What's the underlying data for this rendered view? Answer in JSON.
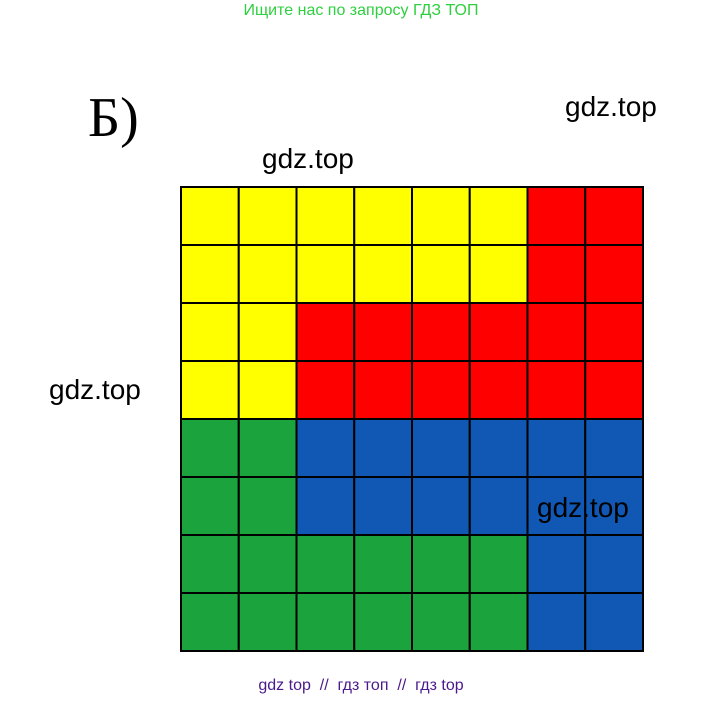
{
  "header": {
    "text": "Ищите нас по запросу ГДЗ ТОП"
  },
  "label": "Б)",
  "watermarks": [
    "gdz.top",
    "gdz.top",
    "gdz.top",
    "gdz.top"
  ],
  "grid": {
    "rows": [
      [
        "#ffff00",
        "#ffff00",
        "#ffff00",
        "#ffff00",
        "#ffff00",
        "#ffff00",
        "#ff0000",
        "#ff0000"
      ],
      [
        "#ffff00",
        "#ffff00",
        "#ffff00",
        "#ffff00",
        "#ffff00",
        "#ffff00",
        "#ff0000",
        "#ff0000"
      ],
      [
        "#ffff00",
        "#ffff00",
        "#ff0000",
        "#ff0000",
        "#ff0000",
        "#ff0000",
        "#ff0000",
        "#ff0000"
      ],
      [
        "#ffff00",
        "#ffff00",
        "#ff0000",
        "#ff0000",
        "#ff0000",
        "#ff0000",
        "#ff0000",
        "#ff0000"
      ],
      [
        "#1ba33d",
        "#1ba33d",
        "#1058b3",
        "#1058b3",
        "#1058b3",
        "#1058b3",
        "#1058b3",
        "#1058b3"
      ],
      [
        "#1ba33d",
        "#1ba33d",
        "#1058b3",
        "#1058b3",
        "#1058b3",
        "#1058b3",
        "#1058b3",
        "#1058b3"
      ],
      [
        "#1ba33d",
        "#1ba33d",
        "#1ba33d",
        "#1ba33d",
        "#1ba33d",
        "#1ba33d",
        "#1058b3",
        "#1058b3"
      ],
      [
        "#1ba33d",
        "#1ba33d",
        "#1ba33d",
        "#1ba33d",
        "#1ba33d",
        "#1ba33d",
        "#1058b3",
        "#1058b3"
      ]
    ]
  },
  "footer": {
    "text": "gdz top  //  гдз топ  //  гдз top"
  }
}
